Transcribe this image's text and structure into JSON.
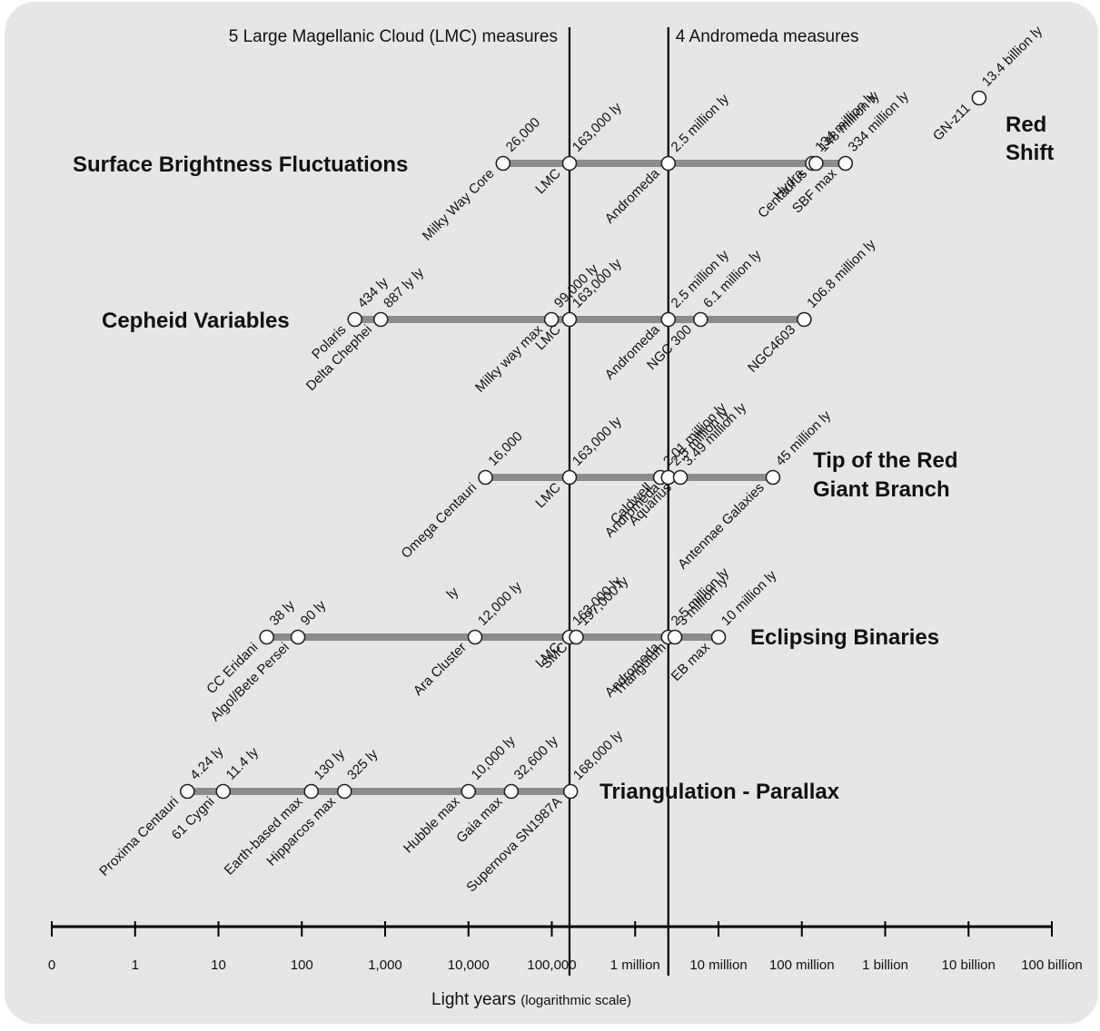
{
  "reference_lines": [
    {
      "label": "5 Large Magellanic Cloud (LMC) measures",
      "x": 163000
    },
    {
      "label": "4 Andromeda measures",
      "x": 2500000
    }
  ],
  "axis": {
    "label": "Light years",
    "label_note": "(logarithmic scale)",
    "ticks": [
      {
        "value": 0,
        "label": "0"
      },
      {
        "value": 1,
        "label": "1"
      },
      {
        "value": 10,
        "label": "10"
      },
      {
        "value": 100,
        "label": "100"
      },
      {
        "value": 1000,
        "label": "1,000"
      },
      {
        "value": 10000,
        "label": "10,000"
      },
      {
        "value": 100000,
        "label": "100,000"
      },
      {
        "value": 1000000,
        "label": "1 million"
      },
      {
        "value": 10000000,
        "label": "10 million"
      },
      {
        "value": 100000000,
        "label": "100 million"
      },
      {
        "value": 1000000000,
        "label": "1 billion"
      },
      {
        "value": 10000000000,
        "label": "10 billion"
      },
      {
        "value": 100000000000,
        "label": "100 billion"
      }
    ]
  },
  "rungs": [
    {
      "name": "Surface Brightness Fluctuations",
      "name_lines": [
        "Surface Brightness Fluctuations"
      ],
      "label_side": "left",
      "points": [
        {
          "value": 26000,
          "dist": "26,000",
          "name": "Milky Way Core"
        },
        {
          "value": 163000,
          "dist": "163,000 ly",
          "name": "LMC"
        },
        {
          "value": 2500000,
          "dist": "2.5 million ly",
          "name": "Andromeda"
        },
        {
          "value": 134000000,
          "dist": "134 million ly",
          "name": "Hydra"
        },
        {
          "value": 148000000,
          "dist": "148 million ly",
          "name": "Centaurus"
        },
        {
          "value": 334000000,
          "dist": "334 million ly",
          "name": "SBF max"
        }
      ]
    },
    {
      "name": "Cepheid Variables",
      "name_lines": [
        "Cepheid Variables"
      ],
      "label_side": "left",
      "points": [
        {
          "value": 434,
          "dist": "434 ly",
          "name": "Polaris"
        },
        {
          "value": 887,
          "dist": "887 ly ly",
          "name": "Delta Chephei"
        },
        {
          "value": 99000,
          "dist": "99,000 ly",
          "name": "Milky way max"
        },
        {
          "value": 163000,
          "dist": "163,000 ly",
          "name": "LMC"
        },
        {
          "value": 2500000,
          "dist": "2.5 million ly",
          "name": "Andromeda"
        },
        {
          "value": 6100000,
          "dist": "6.1 million ly",
          "name": "NGC 300"
        },
        {
          "value": 106800000,
          "dist": "106.8 million ly",
          "name": "NGC4603"
        }
      ]
    },
    {
      "name": "Tip of the Red Giant Branch",
      "name_lines": [
        "Tip of the Red",
        "Giant Branch"
      ],
      "label_side": "right",
      "points": [
        {
          "value": 16000,
          "dist": "16,000",
          "name": "Omega Centauri",
          "name2": "ly"
        },
        {
          "value": 163000,
          "dist": "163,000 ly",
          "name": "LMC"
        },
        {
          "value": 2010000,
          "dist": "2.01 million ly",
          "name": "Caldwell"
        },
        {
          "value": 2500000,
          "dist": "2.5 million ly",
          "name": "Andromeda"
        },
        {
          "value": 3490000,
          "dist": "3.49 million ly",
          "name": "Aquarius"
        },
        {
          "value": 45000000,
          "dist": "45 million ly",
          "name": "Antennae Galaxies"
        }
      ]
    },
    {
      "name": "Eclipsing Binaries",
      "name_lines": [
        "Eclipsing Binaries"
      ],
      "label_side": "right",
      "points": [
        {
          "value": 38,
          "dist": "38 ly",
          "name": "CC Eridani"
        },
        {
          "value": 90,
          "dist": "90 ly",
          "name": "Algol/Bete Persei"
        },
        {
          "value": 12000,
          "dist": "12,000 ly",
          "name": "Ara Cluster"
        },
        {
          "value": 163000,
          "dist": "163,000 ly",
          "name": "LMC"
        },
        {
          "value": 197000,
          "dist": "197,000 ly",
          "name": "SMC"
        },
        {
          "value": 2500000,
          "dist": "2.5 million ly",
          "name": "Andromeda"
        },
        {
          "value": 3000000,
          "dist": "3 million ly",
          "name": "Triangulum"
        },
        {
          "value": 10000000,
          "dist": "10 million ly",
          "name": "EB max"
        }
      ]
    },
    {
      "name": "Triangulation - Parallax",
      "name_lines": [
        "Triangulation - Parallax"
      ],
      "label_side": "right",
      "points": [
        {
          "value": 4.24,
          "dist": "4.24 ly",
          "name": "Proxima Centauri"
        },
        {
          "value": 11.4,
          "dist": "11.4 ly",
          "name": "61 Cygni"
        },
        {
          "value": 130,
          "dist": "130 ly",
          "name": "Earth-based max"
        },
        {
          "value": 325,
          "dist": "325 ly",
          "name": "Hipparcos max"
        },
        {
          "value": 10000,
          "dist": "10,000 ly",
          "name": "Hubble max"
        },
        {
          "value": 32600,
          "dist": "32,600 ly",
          "name": "Gaia max"
        },
        {
          "value": 168000,
          "dist": "168,000 ly",
          "name": "Supernova SN1987A"
        }
      ]
    }
  ],
  "red_shift": {
    "name_lines": [
      "Red",
      "Shift"
    ],
    "point": {
      "value": 13400000000,
      "dist": "13.4 billion ly",
      "name": "GN-z11"
    }
  },
  "colors": {
    "panel": "#e6e6e6",
    "bar": "#8c8c8c",
    "marker_fill": "#ffffff",
    "marker_stroke": "#222222",
    "line": "#000000"
  }
}
